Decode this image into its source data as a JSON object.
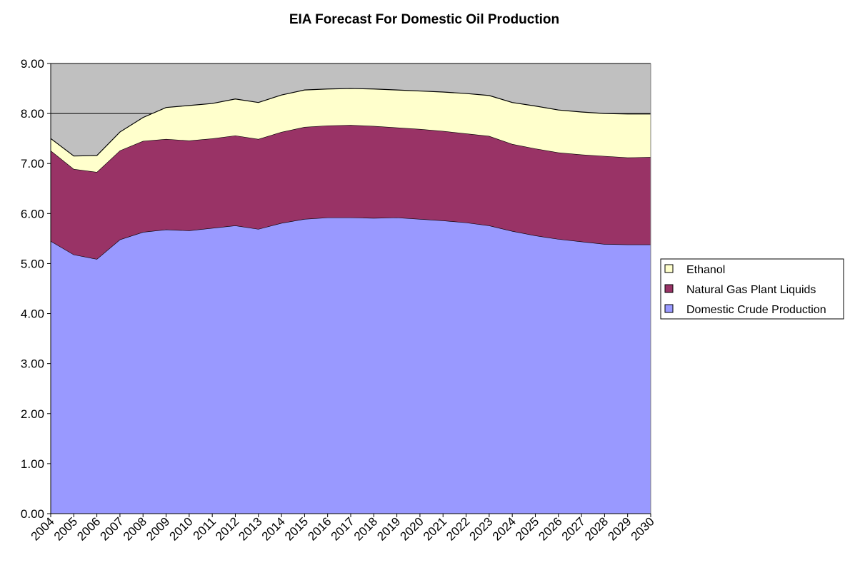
{
  "chart_data": {
    "type": "area",
    "stacked": true,
    "title": "EIA Forecast For Domestic Oil Production",
    "xlabel": "",
    "ylabel": "",
    "ylim": [
      0,
      9
    ],
    "yticks": [
      "0.00",
      "1.00",
      "2.00",
      "3.00",
      "4.00",
      "5.00",
      "6.00",
      "7.00",
      "8.00",
      "9.00"
    ],
    "grid": true,
    "legend_position": "right",
    "plot_background": "#C0C0C0",
    "categories": [
      "2004",
      "2005",
      "2006",
      "2007",
      "2008",
      "2009",
      "2010",
      "2011",
      "2012",
      "2013",
      "2014",
      "2015",
      "2016",
      "2017",
      "2018",
      "2019",
      "2020",
      "2021",
      "2022",
      "2023",
      "2024",
      "2025",
      "2026",
      "2027",
      "2028",
      "2029",
      "2030"
    ],
    "series": [
      {
        "name": "Domestic Crude Production",
        "color": "#9999FF",
        "values": [
          5.45,
          5.18,
          5.09,
          5.48,
          5.63,
          5.68,
          5.66,
          5.71,
          5.76,
          5.69,
          5.81,
          5.89,
          5.92,
          5.92,
          5.91,
          5.92,
          5.89,
          5.86,
          5.82,
          5.76,
          5.65,
          5.56,
          5.49,
          5.44,
          5.39,
          5.38,
          5.38
        ]
      },
      {
        "name": "Natural Gas Plant Liquids",
        "color": "#993366",
        "values": [
          1.81,
          1.71,
          1.74,
          1.78,
          1.82,
          1.81,
          1.8,
          1.79,
          1.8,
          1.8,
          1.82,
          1.84,
          1.84,
          1.85,
          1.84,
          1.8,
          1.8,
          1.79,
          1.78,
          1.79,
          1.74,
          1.74,
          1.73,
          1.74,
          1.76,
          1.74,
          1.75
        ]
      },
      {
        "name": "Ethanol",
        "color": "#FFFFCC",
        "values": [
          0.24,
          0.26,
          0.33,
          0.37,
          0.47,
          0.63,
          0.7,
          0.7,
          0.73,
          0.73,
          0.74,
          0.74,
          0.73,
          0.73,
          0.74,
          0.75,
          0.76,
          0.78,
          0.8,
          0.81,
          0.83,
          0.85,
          0.85,
          0.85,
          0.85,
          0.87,
          0.86
        ]
      }
    ],
    "legend_order": [
      "Ethanol",
      "Natural Gas Plant Liquids",
      "Domestic Crude Production"
    ]
  }
}
